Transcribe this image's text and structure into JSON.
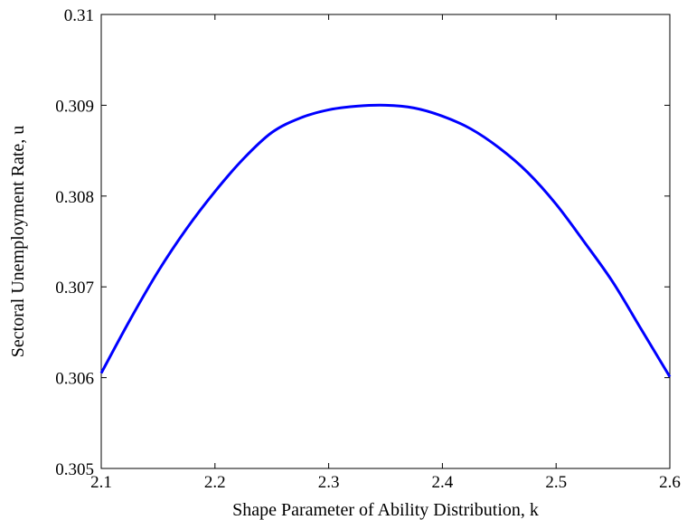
{
  "chart_data": {
    "type": "line",
    "title": "",
    "xlabel": "Shape Parameter of Ability Distribution, k",
    "ylabel": "Sectoral Unemployment Rate, u",
    "xlim": [
      2.1,
      2.6
    ],
    "ylim": [
      0.305,
      0.31
    ],
    "x_ticks": [
      2.1,
      2.2,
      2.3,
      2.4,
      2.5,
      2.6
    ],
    "x_tick_labels": [
      "2.1",
      "2.2",
      "2.3",
      "2.4",
      "2.5",
      "2.6"
    ],
    "y_ticks": [
      0.305,
      0.306,
      0.307,
      0.308,
      0.309,
      0.31
    ],
    "y_tick_labels": [
      "0.305",
      "0.306",
      "0.307",
      "0.308",
      "0.309",
      "0.31"
    ],
    "grid": false,
    "legend": "none",
    "series": [
      {
        "color": "#0000ff",
        "x": [
          2.1,
          2.125,
          2.15,
          2.175,
          2.2,
          2.225,
          2.25,
          2.275,
          2.3,
          2.325,
          2.35,
          2.375,
          2.4,
          2.425,
          2.45,
          2.475,
          2.5,
          2.525,
          2.55,
          2.575,
          2.6
        ],
        "y": [
          0.30605,
          0.30663,
          0.30717,
          0.30764,
          0.30805,
          0.30841,
          0.3087,
          0.30886,
          0.30895,
          0.30899,
          0.309,
          0.30897,
          0.30888,
          0.30874,
          0.30853,
          0.30826,
          0.30791,
          0.30749,
          0.30705,
          0.30653,
          0.30601
        ]
      }
    ]
  }
}
